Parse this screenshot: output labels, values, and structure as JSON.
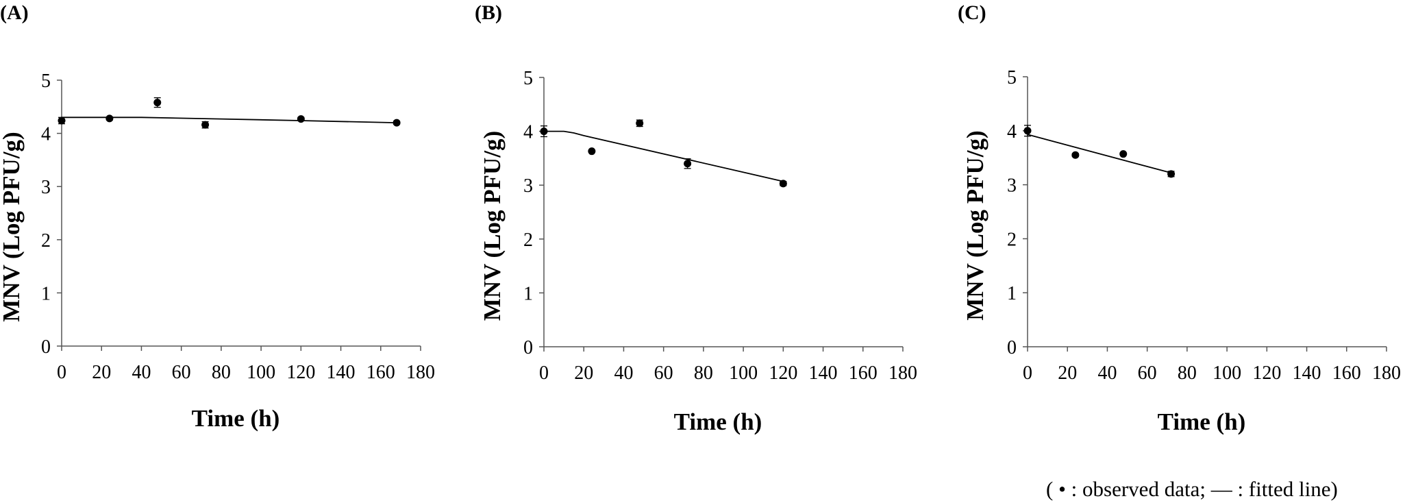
{
  "chart_data": [
    {
      "type": "scatter",
      "panel": "(A)",
      "xlabel": "Time (h)",
      "ylabel": "MNV (Log PFU/g)",
      "xlim": [
        0,
        180
      ],
      "ylim": [
        0,
        5
      ],
      "xticks": [
        0,
        20,
        40,
        60,
        80,
        100,
        120,
        140,
        160,
        180
      ],
      "yticks": [
        0,
        1,
        2,
        3,
        4,
        5
      ],
      "grid": false,
      "observed": {
        "x": [
          0,
          24,
          48,
          72,
          120,
          168
        ],
        "y": [
          4.24,
          4.28,
          4.58,
          4.16,
          4.27,
          4.2
        ],
        "err": [
          0.06,
          0.03,
          0.09,
          0.06,
          0.03,
          0.03
        ]
      },
      "fitted": {
        "x": [
          0,
          40,
          80,
          120,
          168
        ],
        "y": [
          4.3,
          4.3,
          4.27,
          4.24,
          4.2
        ]
      }
    },
    {
      "type": "scatter",
      "panel": "(B)",
      "xlabel": "Time (h)",
      "ylabel": "MNV (Log PFU/g)",
      "xlim": [
        0,
        180
      ],
      "ylim": [
        0,
        5
      ],
      "xticks": [
        0,
        20,
        40,
        60,
        80,
        100,
        120,
        140,
        160,
        180
      ],
      "yticks": [
        0,
        1,
        2,
        3,
        4,
        5
      ],
      "grid": false,
      "observed": {
        "x": [
          0,
          24,
          48,
          72,
          120
        ],
        "y": [
          4.0,
          3.63,
          4.15,
          3.4,
          3.03
        ],
        "err": [
          0.1,
          0.02,
          0.06,
          0.09,
          0.04
        ]
      },
      "fitted": {
        "x": [
          0,
          10,
          15,
          20,
          120
        ],
        "y": [
          4.0,
          4.0,
          3.97,
          3.92,
          3.07
        ]
      }
    },
    {
      "type": "scatter",
      "panel": "(C)",
      "xlabel": "Time (h)",
      "ylabel": "MNV (Log PFU/g)",
      "xlim": [
        0,
        180
      ],
      "ylim": [
        0,
        5
      ],
      "xticks": [
        0,
        20,
        40,
        60,
        80,
        100,
        120,
        140,
        160,
        180
      ],
      "yticks": [
        0,
        1,
        2,
        3,
        4,
        5
      ],
      "grid": false,
      "observed": {
        "x": [
          0,
          24,
          48,
          72
        ],
        "y": [
          4.0,
          3.55,
          3.57,
          3.2
        ],
        "err": [
          0.1,
          0.03,
          0.02,
          0.05
        ]
      },
      "fitted": {
        "x": [
          0,
          72
        ],
        "y": [
          3.93,
          3.22
        ]
      }
    }
  ],
  "legend_note": "( • : observed data; — : fitted line)"
}
